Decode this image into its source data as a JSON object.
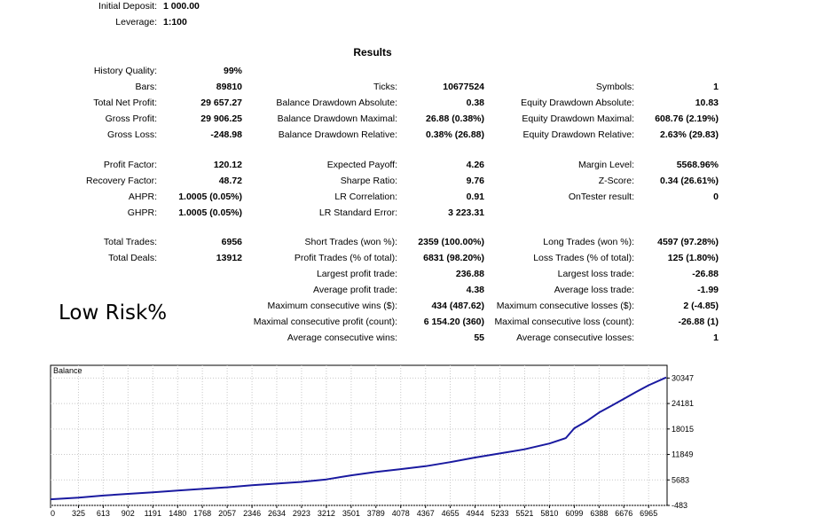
{
  "settings": [
    {
      "label": "Initial Deposit:",
      "value": "1 000.00"
    },
    {
      "label": "Leverage:",
      "value": "1:100"
    }
  ],
  "results_title": "Results",
  "col1": [
    {
      "label": "History Quality:",
      "value": "99%"
    },
    {
      "label": "Bars:",
      "value": "89810"
    },
    {
      "label": "Total Net Profit:",
      "value": "29 657.27"
    },
    {
      "label": "Gross Profit:",
      "value": "29 906.25"
    },
    {
      "label": "Gross Loss:",
      "value": "-248.98"
    },
    {
      "label": "Profit Factor:",
      "value": "120.12"
    },
    {
      "label": "Recovery Factor:",
      "value": "48.72"
    },
    {
      "label": "AHPR:",
      "value": "1.0005 (0.05%)"
    },
    {
      "label": "GHPR:",
      "value": "1.0005 (0.05%)"
    },
    {
      "label": "Total Trades:",
      "value": "6956"
    },
    {
      "label": "Total Deals:",
      "value": "13912"
    }
  ],
  "col2": [
    {
      "label": "Ticks:",
      "value": "10677524"
    },
    {
      "label": "Balance Drawdown Absolute:",
      "value": "0.38"
    },
    {
      "label": "Balance Drawdown Maximal:",
      "value": "26.88 (0.38%)"
    },
    {
      "label": "Balance Drawdown Relative:",
      "value": "0.38% (26.88)"
    },
    {
      "label": "Expected Payoff:",
      "value": "4.26"
    },
    {
      "label": "Sharpe Ratio:",
      "value": "9.76"
    },
    {
      "label": "LR Correlation:",
      "value": "0.91"
    },
    {
      "label": "LR Standard Error:",
      "value": "3 223.31"
    },
    {
      "label": "Short Trades (won %):",
      "value": "2359 (100.00%)"
    },
    {
      "label": "Profit Trades (% of total):",
      "value": "6831 (98.20%)"
    },
    {
      "label": "Largest profit trade:",
      "value": "236.88"
    },
    {
      "label": "Average profit trade:",
      "value": "4.38"
    },
    {
      "label": "Maximum consecutive wins ($):",
      "value": "434 (487.62)"
    },
    {
      "label": "Maximal consecutive profit (count):",
      "value": "6 154.20 (360)"
    },
    {
      "label": "Average consecutive wins:",
      "value": "55"
    }
  ],
  "col3": [
    {
      "label": "Symbols:",
      "value": "1"
    },
    {
      "label": "Equity Drawdown Absolute:",
      "value": "10.83"
    },
    {
      "label": "Equity Drawdown Maximal:",
      "value": "608.76 (2.19%)"
    },
    {
      "label": "Equity Drawdown Relative:",
      "value": "2.63% (29.83)"
    },
    {
      "label": "Margin Level:",
      "value": "5568.96%"
    },
    {
      "label": "Z-Score:",
      "value": "0.34 (26.61%)"
    },
    {
      "label": "OnTester result:",
      "value": "0"
    },
    {
      "label": "Long Trades (won %):",
      "value": "4597 (97.28%)"
    },
    {
      "label": "Loss Trades (% of total):",
      "value": "125 (1.80%)"
    },
    {
      "label": "Largest loss trade:",
      "value": "-26.88"
    },
    {
      "label": "Average loss trade:",
      "value": "-1.99"
    },
    {
      "label": "Maximum consecutive losses ($):",
      "value": "2 (-4.85)"
    },
    {
      "label": "Maximal consecutive loss (count):",
      "value": "-26.88 (1)"
    },
    {
      "label": "Average consecutive losses:",
      "value": "1"
    }
  ],
  "note": "Low Risk%",
  "chart_data": {
    "type": "line",
    "title": "Balance",
    "x_ticks": [
      "0",
      "325",
      "613",
      "902",
      "1191",
      "1480",
      "1768",
      "2057",
      "2346",
      "2634",
      "2923",
      "3212",
      "3501",
      "3789",
      "4078",
      "4367",
      "4655",
      "4944",
      "5233",
      "5521",
      "5810",
      "6099",
      "6388",
      "6676",
      "6965"
    ],
    "y_ticks": [
      "30347",
      "24181",
      "18015",
      "11849",
      "5683",
      "-483"
    ],
    "xlim": [
      0,
      7180
    ],
    "ylim": [
      -483,
      33430
    ],
    "grid": true,
    "series": [
      {
        "color": "#1a1aa0",
        "x": [
          0,
          325,
          613,
          902,
          1191,
          1480,
          1768,
          2057,
          2346,
          2634,
          2923,
          3212,
          3501,
          3789,
          4078,
          4367,
          4655,
          4944,
          5233,
          5521,
          5810,
          6000,
          6099,
          6250,
          6388,
          6530,
          6676,
          6820,
          6965,
          7170
        ],
        "y": [
          1000,
          1400,
          1900,
          2300,
          2700,
          3100,
          3500,
          3900,
          4400,
          4800,
          5200,
          5800,
          6800,
          7600,
          8300,
          9000,
          10000,
          11100,
          12100,
          13100,
          14500,
          15800,
          18200,
          20000,
          22000,
          23600,
          25300,
          27000,
          28600,
          30500
        ]
      }
    ]
  }
}
